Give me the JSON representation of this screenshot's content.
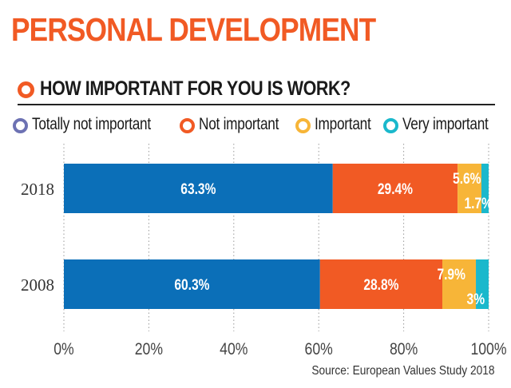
{
  "headline": "PERSONAL DEVELOPMENT",
  "subtitle": "HOW IMPORTANT FOR YOU IS WORK?",
  "source": "Source: European Values Study 2018",
  "colors": {
    "accent": "#f15a24",
    "totally_not_important": "#6d72b3",
    "not_important": "#f15a24",
    "important": "#f7b538",
    "very_important": "#1ab8cc",
    "bar_main": "#0b6fb8"
  },
  "chart_data": {
    "type": "bar",
    "orientation": "horizontal",
    "stacked": true,
    "categories": [
      "2018",
      "2008"
    ],
    "series": [
      {
        "name": "Totally not important",
        "values": [
          null,
          null
        ],
        "labels": [
          "63.3%",
          "60.3%"
        ],
        "label_values": [
          63.3,
          60.3
        ]
      },
      {
        "name": "Not important",
        "values": [
          29.4,
          28.8
        ],
        "labels": [
          "29.4%",
          "28.8%"
        ]
      },
      {
        "name": "Important",
        "values": [
          5.6,
          7.9
        ],
        "labels": [
          "5.6%",
          "7.9%"
        ]
      },
      {
        "name": "Very important",
        "values": [
          1.7,
          3
        ],
        "labels": [
          "1.7%",
          "3%"
        ]
      }
    ],
    "xticks": [
      "0%",
      "20%",
      "40%",
      "60%",
      "80%",
      "100%"
    ],
    "xlim": [
      0,
      100
    ],
    "grid": true,
    "legend_position": "top"
  }
}
